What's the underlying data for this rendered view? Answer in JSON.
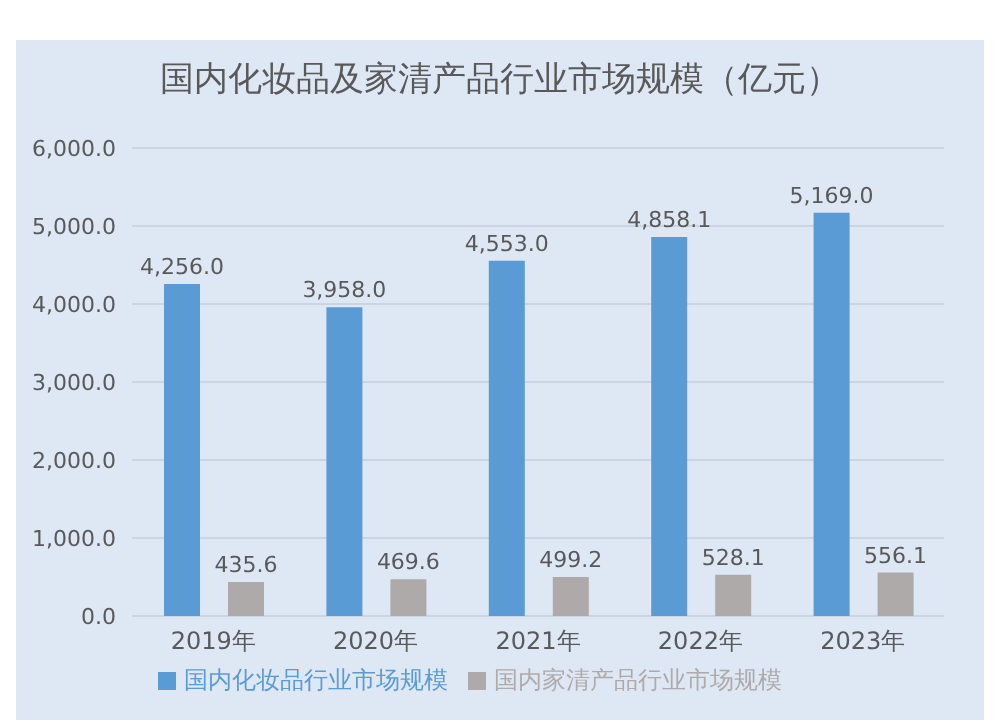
{
  "chart_data": {
    "type": "bar",
    "title": "国内化妆品及家清产品行业市场规模（亿元）",
    "categories": [
      "2019年",
      "2020年",
      "2021年",
      "2022年",
      "2023年"
    ],
    "series": [
      {
        "name": "国内化妆品行业市场规模",
        "color": "#5b9bd5",
        "values": [
          4256.0,
          3958.0,
          4553.0,
          4858.1,
          5169.0
        ],
        "value_labels": [
          "4,256.0",
          "3,958.0",
          "4,553.0",
          "4,858.1",
          "5,169.0"
        ]
      },
      {
        "name": "国内家清产品行业市场规模",
        "color": "#aeaaaa",
        "values": [
          435.6,
          469.6,
          499.2,
          528.1,
          556.1
        ],
        "value_labels": [
          "435.6",
          "469.6",
          "499.2",
          "528.1",
          "556.1"
        ]
      }
    ],
    "ylim": [
      0,
      6000
    ],
    "yticks": [
      {
        "value": 0,
        "label": "0.0"
      },
      {
        "value": 1000,
        "label": "1,000.0"
      },
      {
        "value": 2000,
        "label": "2,000.0"
      },
      {
        "value": 3000,
        "label": "3,000.0"
      },
      {
        "value": 4000,
        "label": "4,000.0"
      },
      {
        "value": 5000,
        "label": "5,000.0"
      },
      {
        "value": 6000,
        "label": "6,000.0"
      }
    ],
    "grid": "y",
    "legend": "bottom"
  }
}
